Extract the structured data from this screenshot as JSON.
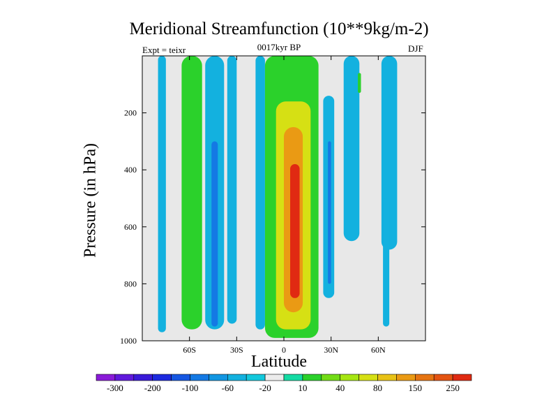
{
  "chart_data": {
    "type": "heatmap",
    "title": "Meridional Streamfunction (10**9kg/m-2)",
    "subtitle": "0017kyr BP",
    "left_label": "Expt = teixr",
    "right_label": "DJF",
    "xlabel": "Latitude",
    "ylabel": "Pressure (in hPa)",
    "xlim": [
      -90,
      90
    ],
    "ylim": [
      1000,
      0
    ],
    "x_ticks": [
      {
        "value": -60,
        "label": "60S"
      },
      {
        "value": -30,
        "label": "30S"
      },
      {
        "value": 0,
        "label": "0"
      },
      {
        "value": 30,
        "label": "30N"
      },
      {
        "value": 60,
        "label": "60N"
      }
    ],
    "y_ticks": [
      {
        "value": 200,
        "label": "200"
      },
      {
        "value": 400,
        "label": "400"
      },
      {
        "value": 600,
        "label": "600"
      },
      {
        "value": 800,
        "label": "800"
      },
      {
        "value": 1000,
        "label": "1000"
      }
    ],
    "colorbar": {
      "colors": [
        "#8a1bd8",
        "#6019dc",
        "#3a1ad8",
        "#1c2adf",
        "#1557e2",
        "#1479e4",
        "#1296e2",
        "#13b1df",
        "#13c8dc",
        "#ececec",
        "#15dba4",
        "#2bd12b",
        "#72dc16",
        "#a6e612",
        "#d6e014",
        "#e8c216",
        "#ea9a14",
        "#e67412",
        "#e45412",
        "#e02a12"
      ],
      "tick_labels": [
        "-300",
        "-200",
        "-100",
        "-60",
        "-20",
        "10",
        "40",
        "80",
        "150",
        "250"
      ]
    },
    "cells": [
      {
        "x": [
          -80,
          -75
        ],
        "p": [
          0,
          970
        ],
        "level": -20
      },
      {
        "x": [
          -65,
          -52
        ],
        "p": [
          0,
          960
        ],
        "level": 10
      },
      {
        "x": [
          -50,
          -38
        ],
        "p": [
          0,
          960
        ],
        "level": -20
      },
      {
        "x": [
          -46,
          -42
        ],
        "p": [
          300,
          950
        ],
        "level": -60
      },
      {
        "x": [
          -36,
          -30
        ],
        "p": [
          0,
          940
        ],
        "level": -20
      },
      {
        "x": [
          -18,
          -12
        ],
        "p": [
          0,
          960
        ],
        "level": -20
      },
      {
        "x": [
          -12,
          22
        ],
        "p": [
          0,
          990
        ],
        "level": 10
      },
      {
        "x": [
          -5,
          17
        ],
        "p": [
          160,
          960
        ],
        "level": 80
      },
      {
        "x": [
          0,
          12
        ],
        "p": [
          250,
          900
        ],
        "level": 150
      },
      {
        "x": [
          4,
          10
        ],
        "p": [
          380,
          850
        ],
        "level": 250
      },
      {
        "x": [
          25,
          32
        ],
        "p": [
          140,
          850
        ],
        "level": -20
      },
      {
        "x": [
          28,
          30
        ],
        "p": [
          300,
          800
        ],
        "level": -60
      },
      {
        "x": [
          38,
          48
        ],
        "p": [
          0,
          650
        ],
        "level": -20
      },
      {
        "x": [
          47,
          49
        ],
        "p": [
          60,
          130
        ],
        "level": 10
      },
      {
        "x": [
          62,
          72
        ],
        "p": [
          0,
          680
        ],
        "level": -20
      },
      {
        "x": [
          63,
          67
        ],
        "p": [
          500,
          950
        ],
        "level": -20
      }
    ]
  }
}
